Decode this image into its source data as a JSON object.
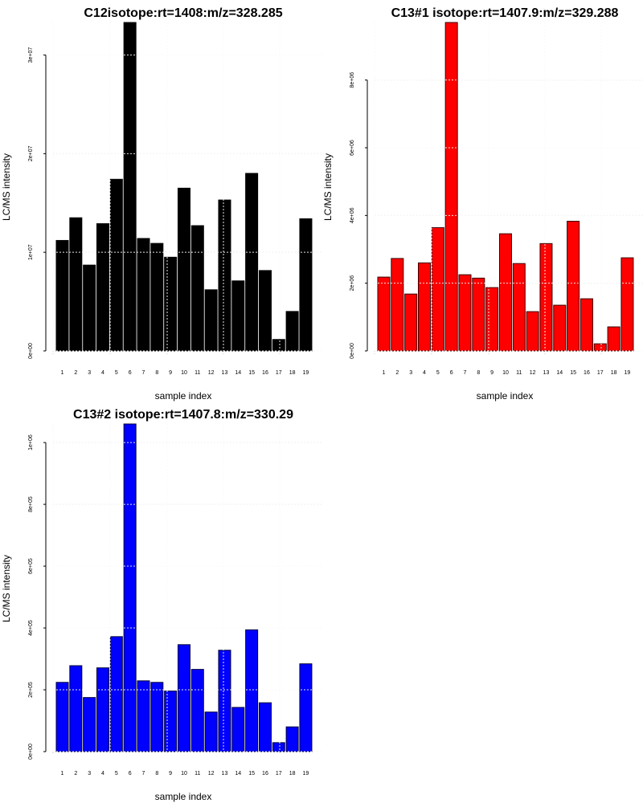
{
  "chart_data": [
    {
      "type": "bar",
      "title": "C12isotope:rt=1408:m/z=328.285",
      "xlabel": "sample index",
      "ylabel": "LC/MS intensity",
      "color": "#000000",
      "border": "#000000",
      "categories": [
        "1",
        "2",
        "3",
        "4",
        "5",
        "6",
        "7",
        "8",
        "9",
        "10",
        "11",
        "12",
        "13",
        "14",
        "15",
        "16",
        "17",
        "18",
        "19"
      ],
      "values": [
        11200000,
        13500000,
        8700000,
        12900000,
        17400000,
        33300000,
        11400000,
        10900000,
        9500000,
        16500000,
        12700000,
        6200000,
        15300000,
        7100000,
        18000000,
        8150000,
        1160000,
        4000000,
        13400000
      ],
      "yticks": [
        0,
        10000000,
        20000000,
        30000000
      ],
      "ytick_labels": [
        "0e+00",
        "1e+07",
        "2e+07",
        "3e+07"
      ],
      "ylim": [
        0,
        33300000
      ],
      "grid": true
    },
    {
      "type": "bar",
      "title": "C13#1 isotope:rt=1407.9:m/z=329.288",
      "xlabel": "sample index",
      "ylabel": "LC/MS intensity",
      "color": "#ff0000",
      "border": "#3a0000",
      "categories": [
        "1",
        "2",
        "3",
        "4",
        "5",
        "6",
        "7",
        "8",
        "9",
        "10",
        "11",
        "12",
        "13",
        "14",
        "15",
        "16",
        "17",
        "18",
        "19"
      ],
      "values": [
        2180000,
        2730000,
        1680000,
        2600000,
        3640000,
        9700000,
        2250000,
        2150000,
        1870000,
        3460000,
        2580000,
        1160000,
        3170000,
        1350000,
        3830000,
        1540000,
        210000,
        710000,
        2750000
      ],
      "yticks": [
        0,
        2000000,
        4000000,
        6000000,
        8000000
      ],
      "ytick_labels": [
        "0e+00",
        "2e+06",
        "4e+06",
        "6e+06",
        "8e+06"
      ],
      "ylim": [
        0,
        9700000
      ],
      "grid": true
    },
    {
      "type": "bar",
      "title": "C13#2 isotope:rt=1407.8:m/z=330.29",
      "xlabel": "sample index",
      "ylabel": "LC/MS intensity",
      "color": "#0000ff",
      "border": "#00003a",
      "categories": [
        "1",
        "2",
        "3",
        "4",
        "5",
        "6",
        "7",
        "8",
        "9",
        "10",
        "11",
        "12",
        "13",
        "14",
        "15",
        "16",
        "17",
        "18",
        "19"
      ],
      "values": [
        224000,
        278000,
        175000,
        271000,
        372000,
        1060000,
        229000,
        224000,
        196000,
        346000,
        266000,
        128000,
        328000,
        143000,
        394000,
        158000,
        29000,
        80000,
        284000
      ],
      "yticks": [
        0,
        200000,
        400000,
        600000,
        800000,
        1000000
      ],
      "ytick_labels": [
        "0e+00",
        "2e+05",
        "4e+05",
        "6e+05",
        "8e+05",
        "1e+06"
      ],
      "ylim": [
        0,
        1060000
      ],
      "grid": true
    }
  ]
}
